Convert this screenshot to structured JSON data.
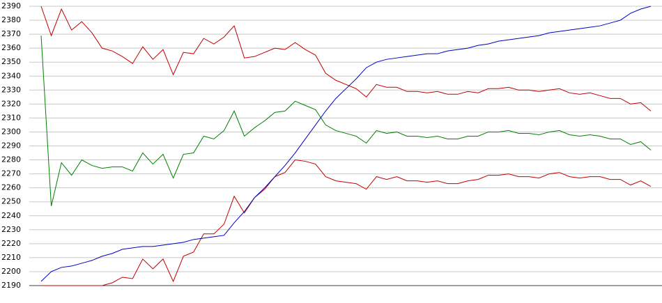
{
  "chart_data": {
    "type": "line",
    "categories": [
      null,
      null,
      null,
      null,
      null,
      null,
      null,
      null,
      null,
      null,
      null,
      null,
      null,
      null,
      null,
      null,
      null,
      null,
      null,
      null,
      null,
      null,
      null,
      null,
      null,
      null,
      null,
      null,
      null,
      null,
      null,
      null,
      null,
      null,
      null,
      null,
      null,
      null,
      null,
      null,
      null,
      null,
      null,
      null,
      null,
      null,
      null,
      null,
      null,
      null,
      null,
      null,
      null,
      null,
      null,
      null,
      null,
      null,
      null,
      null,
      null
    ],
    "series": [
      {
        "color": "#c00000",
        "values": [
          2390,
          2369,
          2388,
          2373,
          2379,
          2371,
          2360,
          2358,
          2354,
          2349,
          2361,
          2352,
          2359,
          2341,
          2357,
          2356,
          2367,
          2363,
          2368,
          2376,
          2353,
          2354,
          2357,
          2360,
          2359,
          2364,
          2359,
          2355,
          2342,
          2337,
          2334,
          2331,
          2325,
          2334,
          2332,
          2332,
          2329,
          2329,
          2328,
          2329,
          2327,
          2327,
          2329,
          2328,
          2331,
          2331,
          2332,
          2330,
          2330,
          2329,
          2330,
          2331,
          2328,
          2327,
          2328,
          2326,
          2324,
          2324,
          2320,
          2321,
          2315
        ]
      },
      {
        "color": "#008000",
        "values": [
          2369,
          2247,
          2278,
          2269,
          2280,
          2276,
          2274,
          2275,
          2275,
          2272,
          2285,
          2277,
          2284,
          2267,
          2284,
          2285,
          2297,
          2295,
          2301,
          2315,
          2297,
          2303,
          2308,
          2314,
          2315,
          2322,
          2319,
          2316,
          2305,
          2301,
          2299,
          2297,
          2292,
          2301,
          2299,
          2300,
          2297,
          2297,
          2296,
          2297,
          2295,
          2295,
          2297,
          2297,
          2300,
          2300,
          2301,
          2299,
          2299,
          2298,
          2300,
          2301,
          2298,
          2297,
          2298,
          2297,
          2295,
          2295,
          2291,
          2293,
          2287
        ]
      },
      {
        "color": "#c00000",
        "values": [
          2190,
          2190,
          2190,
          2190,
          2190,
          2190,
          2190,
          2192,
          2196,
          2195,
          2209,
          2202,
          2209,
          2193,
          2211,
          2214,
          2227,
          2227,
          2234,
          2254,
          2242,
          2253,
          2259,
          2268,
          2271,
          2280,
          2279,
          2277,
          2268,
          2265,
          2264,
          2263,
          2259,
          2268,
          2266,
          2268,
          2265,
          2265,
          2264,
          2265,
          2263,
          2263,
          2265,
          2266,
          2269,
          2269,
          2270,
          2268,
          2268,
          2267,
          2270,
          2271,
          2268,
          2267,
          2268,
          2268,
          2266,
          2266,
          2262,
          2265,
          2261
        ]
      },
      {
        "color": "#0000c0",
        "values": [
          2193,
          2200,
          2203,
          2204,
          2206,
          2208,
          2211,
          2213,
          2216,
          2217,
          2218,
          2218,
          2219,
          2220,
          2221,
          2223,
          2224,
          2225,
          2226,
          2235,
          2243,
          2253,
          2260,
          2268,
          2276,
          2285,
          2295,
          2305,
          2315,
          2324,
          2331,
          2338,
          2346,
          2350,
          2352,
          2353,
          2354,
          2355,
          2356,
          2356,
          2358,
          2359,
          2360,
          2362,
          2363,
          2365,
          2366,
          2367,
          2368,
          2369,
          2371,
          2372,
          2373,
          2374,
          2375,
          2376,
          2378,
          2380,
          2385,
          2388,
          2390
        ]
      }
    ],
    "ylim": [
      2190,
      2390
    ],
    "yticks": [
      2190,
      2200,
      2210,
      2220,
      2230,
      2240,
      2250,
      2260,
      2270,
      2280,
      2290,
      2300,
      2310,
      2320,
      2330,
      2340,
      2350,
      2360,
      2370,
      2380,
      2390
    ],
    "grid": true
  }
}
